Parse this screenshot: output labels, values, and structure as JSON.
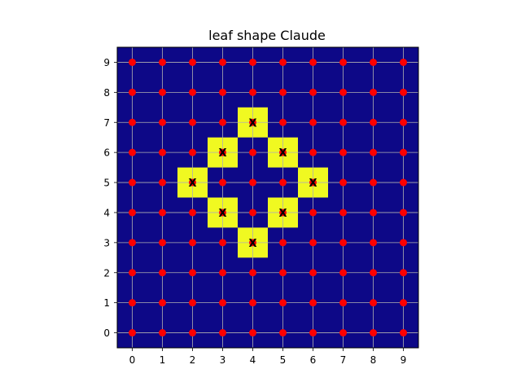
{
  "chart_data": {
    "type": "heatmap",
    "title": "leaf shape Claude",
    "xlabel": "",
    "ylabel": "",
    "x_ticks": [
      "0",
      "1",
      "2",
      "3",
      "4",
      "5",
      "6",
      "7",
      "8",
      "9"
    ],
    "y_ticks": [
      "0",
      "1",
      "2",
      "3",
      "4",
      "5",
      "6",
      "7",
      "8",
      "9"
    ],
    "xlim": [
      -0.5,
      9.5
    ],
    "ylim": [
      -0.5,
      9.5
    ],
    "grid": true,
    "colors": {
      "background_cell": "#0d0887",
      "highlight_cell": "#f0f921",
      "point": "#ff0000",
      "grid": "#b0b0b0"
    },
    "grid_points": {
      "x": [
        0,
        1,
        2,
        3,
        4,
        5,
        6,
        7,
        8,
        9
      ],
      "y": [
        0,
        1,
        2,
        3,
        4,
        5,
        6,
        7,
        8,
        9
      ]
    },
    "highlighted_cells": [
      {
        "x": 4,
        "y": 7,
        "label": "X"
      },
      {
        "x": 3,
        "y": 6,
        "label": "X"
      },
      {
        "x": 5,
        "y": 6,
        "label": "X"
      },
      {
        "x": 2,
        "y": 5,
        "label": "X"
      },
      {
        "x": 6,
        "y": 5,
        "label": "X"
      },
      {
        "x": 3,
        "y": 4,
        "label": "X"
      },
      {
        "x": 5,
        "y": 4,
        "label": "X"
      },
      {
        "x": 4,
        "y": 3,
        "label": "X"
      }
    ]
  }
}
